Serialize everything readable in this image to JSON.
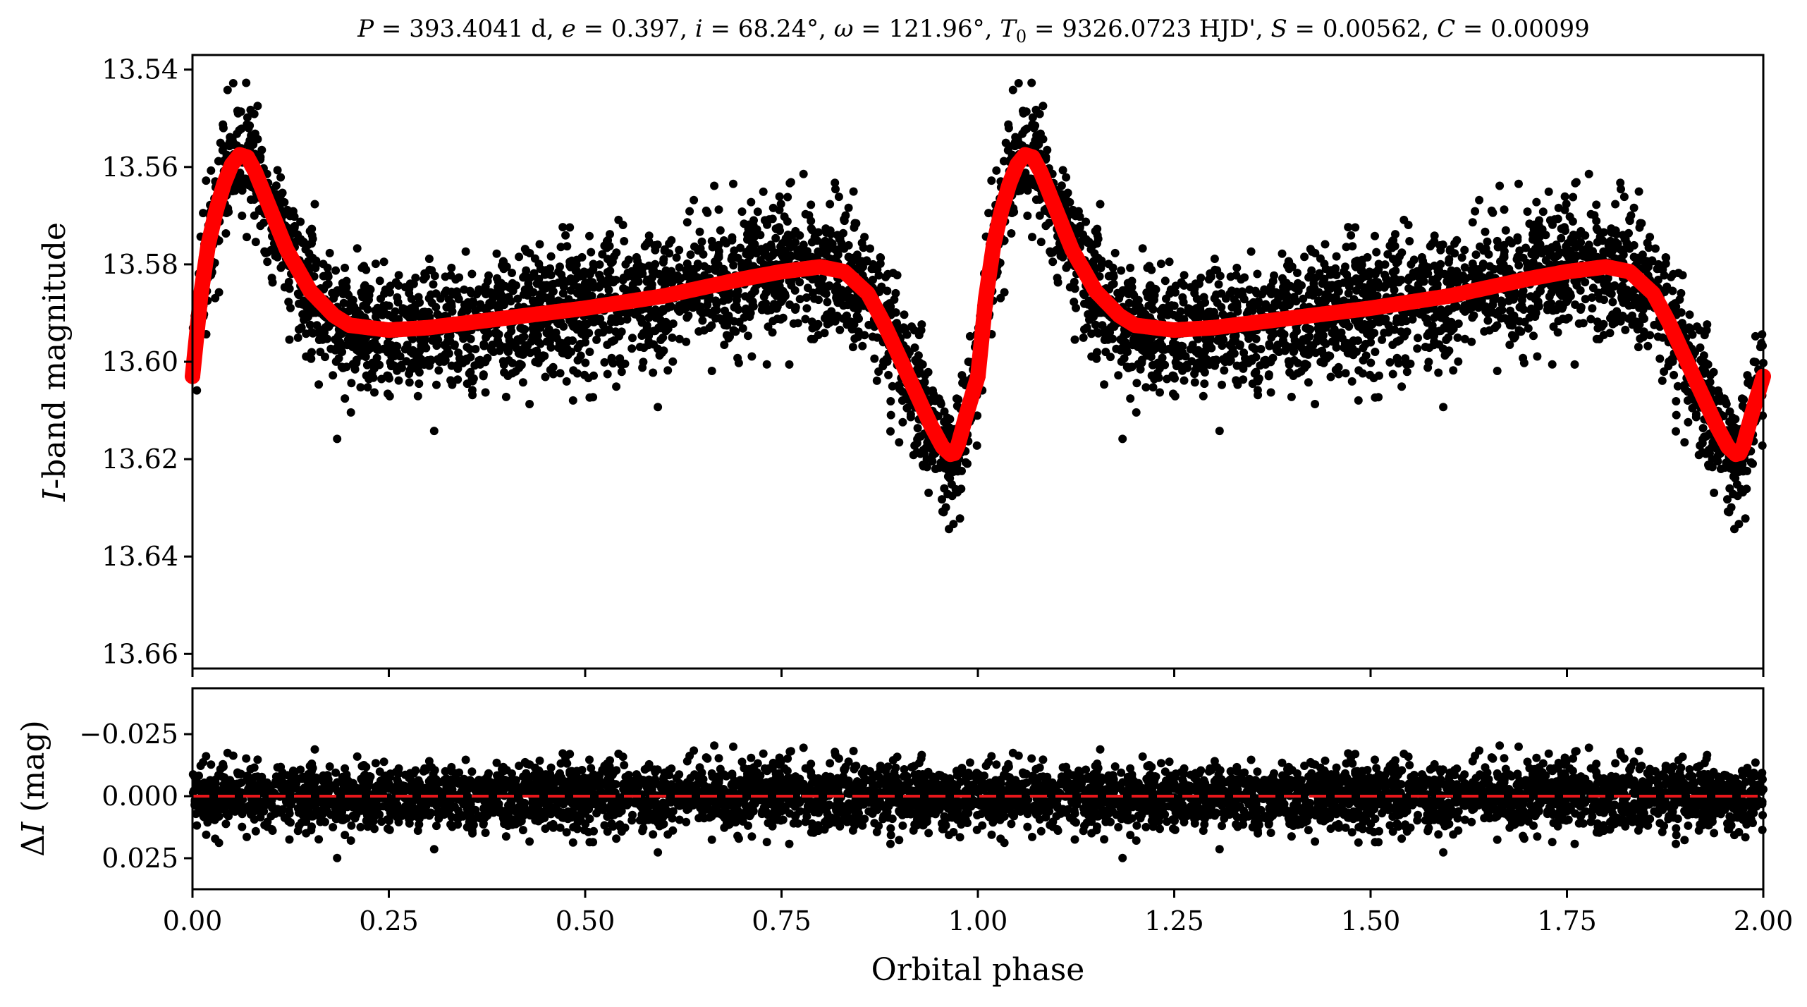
{
  "title": {
    "P_sym": "P",
    "P_val": " = 393.4041 d, ",
    "e_sym": "e",
    "e_val": " = 0.397, ",
    "i_sym": "i",
    "i_val": " = 68.24°, ",
    "w_sym": "ω",
    "w_val": " = 121.96°, ",
    "T_sym": "T",
    "T_sub": "0",
    "T_val": " = 9326.0723 HJD', ",
    "S_sym": "S",
    "S_val": " = 0.00562, ",
    "C_sym": "C",
    "C_val": " = 0.00099"
  },
  "colors": {
    "points": "#000000",
    "model": "#ff0000",
    "zero_line": "#e8171b"
  },
  "chart_data": [
    {
      "type": "scatter",
      "panel": "light-curve",
      "ylabel_italic": "I",
      "ylabel_rest": "-band magnitude",
      "xlim": [
        0.0,
        2.0
      ],
      "ylim": [
        13.537,
        13.663
      ],
      "y_inverted": true,
      "yticks": [
        13.54,
        13.56,
        13.58,
        13.6,
        13.62,
        13.64,
        13.66
      ],
      "ytick_labels": [
        "13.54",
        "13.56",
        "13.58",
        "13.60",
        "13.62",
        "13.64",
        "13.66"
      ],
      "grid": false,
      "scatter_scatter_mag": 0.0065,
      "series": [
        {
          "kind": "model-curve",
          "phase": [
            0.0,
            0.01,
            0.02,
            0.03,
            0.04,
            0.05,
            0.06,
            0.07,
            0.08,
            0.1,
            0.12,
            0.15,
            0.18,
            0.2,
            0.25,
            0.3,
            0.4,
            0.5,
            0.6,
            0.7,
            0.75,
            0.8,
            0.83,
            0.86,
            0.88,
            0.9,
            0.92,
            0.94,
            0.955,
            0.965,
            0.97,
            0.975,
            0.985,
            1.0
          ],
          "mag": [
            13.603,
            13.587,
            13.576,
            13.569,
            13.5635,
            13.5595,
            13.5575,
            13.558,
            13.561,
            13.569,
            13.577,
            13.5855,
            13.5905,
            13.5925,
            13.5935,
            13.593,
            13.591,
            13.589,
            13.5865,
            13.583,
            13.5815,
            13.5805,
            13.5815,
            13.586,
            13.592,
            13.599,
            13.606,
            13.613,
            13.6175,
            13.619,
            13.6188,
            13.617,
            13.611,
            13.603
          ]
        }
      ]
    },
    {
      "type": "scatter",
      "panel": "residuals",
      "ylabel_delta": "Δ",
      "ylabel_italic": "I",
      "ylabel_rest": " (mag)",
      "xlabel": "Orbital phase",
      "xlim": [
        0.0,
        2.0
      ],
      "ylim": [
        -0.0435,
        0.0375
      ],
      "y_inverted": true,
      "yticks": [
        -0.025,
        0.0,
        0.025
      ],
      "ytick_labels": [
        "−0.025",
        "0.000",
        "0.025"
      ],
      "xticks": [
        0.0,
        0.25,
        0.5,
        0.75,
        1.0,
        1.25,
        1.5,
        1.75,
        2.0
      ],
      "xtick_labels": [
        "0.00",
        "0.25",
        "0.50",
        "0.75",
        "1.00",
        "1.25",
        "1.50",
        "1.75",
        "2.00"
      ],
      "zero_line": 0.0,
      "residual_scatter": 0.0065
    }
  ]
}
